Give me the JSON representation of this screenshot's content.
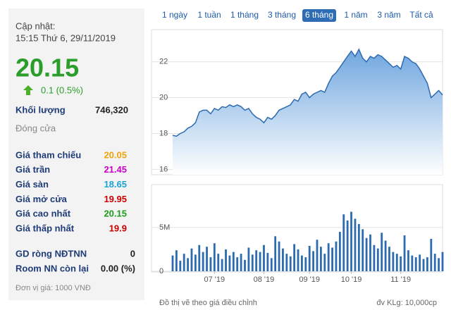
{
  "info": {
    "updated_label": "Cập nhật:",
    "updated_time": "15:15 Thứ 6, 29/11/2019",
    "price": 20.15,
    "change": "0.1 (0.5%)",
    "volume_label": "Khối lượng",
    "volume": "746,320",
    "status": "Đóng cửa",
    "rows": [
      {
        "label": "Giá tham chiếu",
        "value": 20.05,
        "color": "#f0a30a"
      },
      {
        "label": "Giá trần",
        "value": 21.45,
        "color": "#c800c8"
      },
      {
        "label": "Giá sàn",
        "value": 18.65,
        "color": "#1aa3d6"
      },
      {
        "label": "Giá mở cửa",
        "value": 19.95,
        "color": "#cc0000"
      },
      {
        "label": "Giá cao nhất",
        "value": 20.15,
        "color": "#1a9e1a"
      },
      {
        "label": "Giá thấp nhất",
        "value": 19.9,
        "color": "#cc0000"
      }
    ],
    "foreign": [
      {
        "label": "GD ròng NĐTNN",
        "value": 0
      },
      {
        "label": "Room NN còn lại",
        "value": "0.00 (%)"
      }
    ],
    "unit_note": "Đơn vị giá: 1000 VNĐ"
  },
  "tabs": {
    "items": [
      "1 ngày",
      "1 tuần",
      "1 tháng",
      "3 tháng",
      "6 tháng",
      "1 năm",
      "3 năm",
      "Tất cả"
    ],
    "active": 4
  },
  "chart_data": [
    {
      "type": "area",
      "color": "#2c6bb0",
      "xlim": [
        0,
        71
      ],
      "ylim": [
        15.7,
        23.8
      ],
      "yticks": [
        16,
        18,
        20,
        22
      ],
      "grid": true,
      "values": [
        17.9,
        17.85,
        18.0,
        18.1,
        18.3,
        18.4,
        18.6,
        19.2,
        19.3,
        19.3,
        19.1,
        19.4,
        19.3,
        19.5,
        19.45,
        19.6,
        19.5,
        19.6,
        19.5,
        19.3,
        19.4,
        19.1,
        18.9,
        18.8,
        18.6,
        18.9,
        18.8,
        19.0,
        19.3,
        19.4,
        19.5,
        19.6,
        19.9,
        19.8,
        20.2,
        20.3,
        20.0,
        20.2,
        20.3,
        20.4,
        20.3,
        20.8,
        21.2,
        21.4,
        21.7,
        22.0,
        22.3,
        22.6,
        22.3,
        22.7,
        22.2,
        22.0,
        22.3,
        22.2,
        22.4,
        22.3,
        22.1,
        21.9,
        21.7,
        21.8,
        21.6,
        22.3,
        22.2,
        22.0,
        21.9,
        21.6,
        21.2,
        20.8,
        20.0,
        20.2,
        20.4,
        20.15
      ]
    },
    {
      "type": "bar",
      "color": "#2c6bb0",
      "xlim": [
        0,
        71
      ],
      "ylim": [
        0,
        9.9
      ],
      "yticks": [
        0,
        {
          "value": 5,
          "label": "5M"
        }
      ],
      "grid": true,
      "xticks": [
        {
          "value": 11,
          "label": "07 '19"
        },
        {
          "value": 24,
          "label": "08 '19"
        },
        {
          "value": 36,
          "label": "09 '19"
        },
        {
          "value": 47,
          "label": "10 '19"
        },
        {
          "value": 60,
          "label": "11 '19"
        }
      ],
      "values": [
        1.8,
        2.4,
        1.2,
        2.0,
        1.5,
        2.6,
        1.9,
        3.0,
        2.2,
        2.8,
        1.6,
        3.2,
        2.0,
        1.4,
        2.5,
        1.8,
        2.2,
        1.6,
        2.0,
        1.3,
        2.7,
        1.9,
        2.4,
        2.2,
        3.0,
        2.1,
        1.5,
        4.0,
        3.4,
        2.6,
        2.0,
        1.7,
        3.1,
        2.5,
        1.8,
        1.6,
        2.9,
        2.3,
        3.6,
        2.8,
        2.0,
        3.2,
        2.7,
        3.4,
        4.5,
        6.5,
        5.8,
        6.8,
        6.0,
        5.4,
        4.8,
        3.8,
        4.2,
        3.0,
        2.6,
        4.4,
        3.5,
        2.8,
        2.2,
        2.0,
        1.7,
        4.1,
        2.4,
        1.8,
        1.6,
        1.9,
        1.4,
        1.6,
        3.7,
        2.0,
        1.5,
        2.2
      ]
    }
  ],
  "footer": {
    "left": "Đồ thị vẽ theo giá điều chỉnh",
    "right": "đv KLg: 10,000cp"
  }
}
